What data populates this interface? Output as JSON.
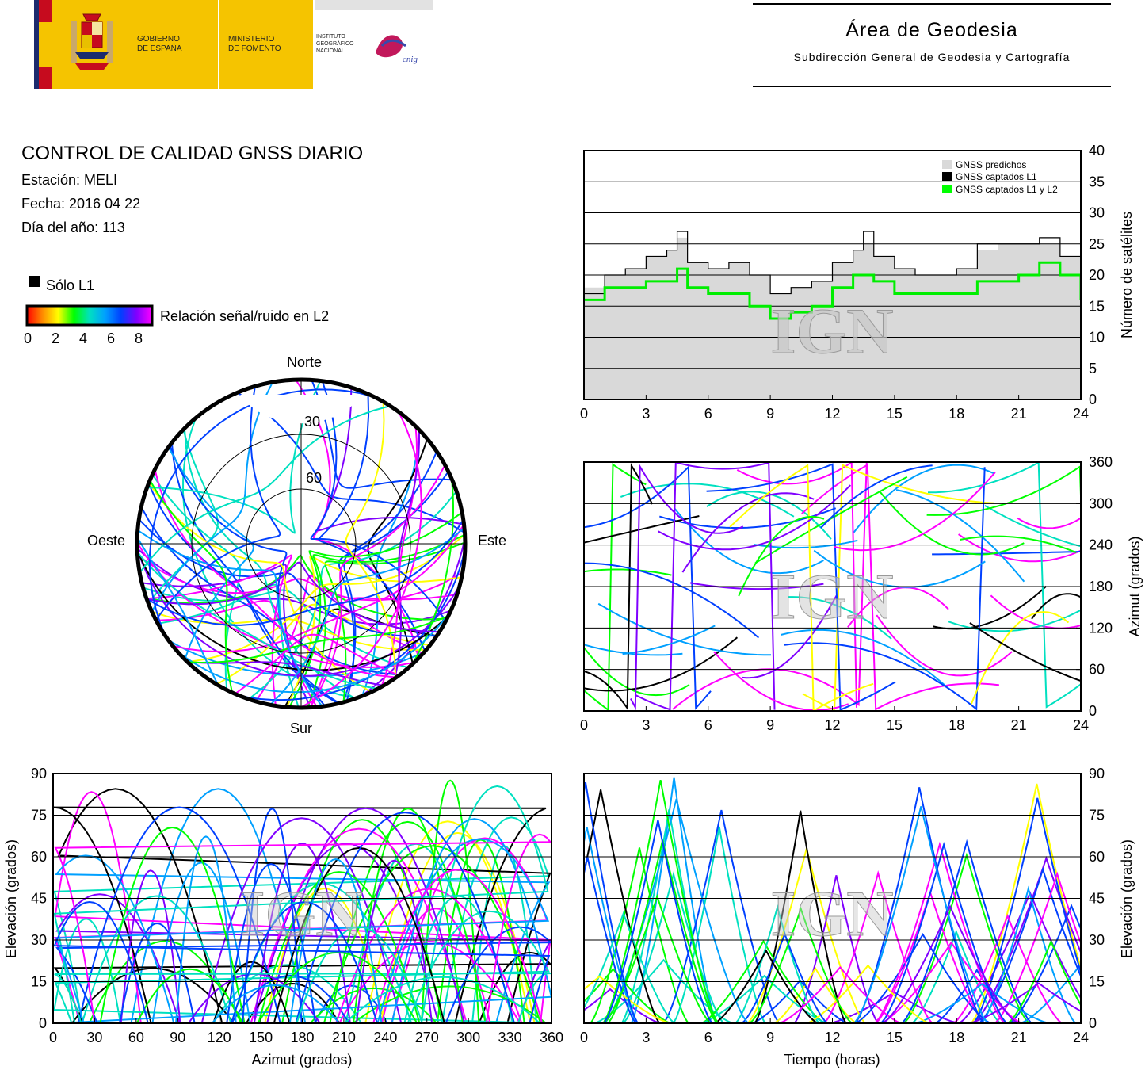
{
  "header": {
    "gobierno": [
      "GOBIERNO",
      "DE ESPAÑA"
    ],
    "ministerio": [
      "MINISTERIO",
      "DE FOMENTO"
    ],
    "instituto": [
      "INSTITUTO",
      "GEOGRÁFICO",
      "NACIONAL"
    ],
    "cnig": "cnig",
    "area_title": "Área de Geodesia",
    "area_subtitle": "Subdirección General de Geodesia y Cartografía"
  },
  "info": {
    "title": "CONTROL DE CALIDAD GNSS DIARIO",
    "station": "Estación: MELI",
    "date": "Fecha: 2016 04 22",
    "doy": "Día del año: 113"
  },
  "watermark": "IGN",
  "colorbar": {
    "l1_only": "Sólo L1",
    "label": "Relación señal/ruido en L2",
    "ticks": [
      "0",
      "2",
      "4",
      "6",
      "8"
    ],
    "colors": [
      "#ff0000",
      "#ff8c00",
      "#ffff00",
      "#00ff00",
      "#00e0c0",
      "#00a0ff",
      "#0040ff",
      "#8000ff",
      "#ff00ff"
    ]
  },
  "polar": {
    "north": "Norte",
    "south": "Sur",
    "west": "Oeste",
    "east": "Este",
    "ring_labels": [
      "30",
      "60"
    ]
  },
  "chart_data": [
    {
      "type": "line",
      "name": "satellite-count",
      "legend": [
        "GNSS predichos",
        "GNSS captados L1",
        "GNSS captados L1 y L2"
      ],
      "legend_colors": [
        "#d9d9d9",
        "#000000",
        "#00ff00"
      ],
      "ylabel": "Número de satélites",
      "xlim": [
        0,
        24
      ],
      "ylim": [
        0,
        40
      ],
      "xticks": [
        "0",
        "3",
        "6",
        "9",
        "12",
        "15",
        "18",
        "21",
        "24"
      ],
      "yticks": [
        "0",
        "5",
        "10",
        "15",
        "20",
        "25",
        "30",
        "35",
        "40"
      ],
      "x": [
        0,
        1,
        2,
        3,
        4,
        4.5,
        5,
        6,
        7,
        8,
        9,
        10,
        11,
        12,
        13,
        13.5,
        14,
        15,
        16,
        17,
        18,
        19,
        20,
        21,
        22,
        23,
        24
      ],
      "predicted": [
        18,
        20,
        21,
        23,
        24,
        26,
        22,
        21,
        22,
        20,
        17,
        18,
        19,
        22,
        24,
        25,
        23,
        21,
        20,
        20,
        21,
        24,
        25,
        25,
        25,
        23,
        19
      ],
      "l1": [
        17,
        20,
        21,
        23,
        24,
        27,
        22,
        21,
        22,
        20,
        17,
        18,
        19,
        22,
        24,
        27,
        23,
        21,
        20,
        20,
        21,
        25,
        25,
        25,
        26,
        23,
        19
      ],
      "l1l2": [
        16,
        18,
        18,
        19,
        19,
        21,
        18,
        17,
        17,
        15,
        13,
        14,
        15,
        18,
        20,
        20,
        19,
        17,
        17,
        17,
        17,
        19,
        19,
        20,
        22,
        20,
        16
      ]
    },
    {
      "type": "scatter",
      "name": "azimuth-time",
      "ylabel": "Azimut (grados)",
      "xlim": [
        0,
        24
      ],
      "ylim": [
        0,
        360
      ],
      "xticks": [
        "0",
        "3",
        "6",
        "9",
        "12",
        "15",
        "18",
        "21",
        "24"
      ],
      "yticks": [
        "0",
        "60",
        "120",
        "180",
        "240",
        "300",
        "360"
      ]
    },
    {
      "type": "scatter",
      "name": "elevation-azimuth",
      "xlabel": "Azimut (grados)",
      "ylabel": "Elevación (grados)",
      "xlim": [
        0,
        360
      ],
      "ylim": [
        0,
        90
      ],
      "xticks": [
        "0",
        "30",
        "60",
        "90",
        "120",
        "150",
        "180",
        "210",
        "240",
        "270",
        "300",
        "330",
        "360"
      ],
      "yticks": [
        "0",
        "15",
        "30",
        "45",
        "60",
        "75",
        "90"
      ]
    },
    {
      "type": "scatter",
      "name": "elevation-time",
      "xlabel": "Tiempo (horas)",
      "ylabel": "Elevación (grados)",
      "xlim": [
        0,
        24
      ],
      "ylim": [
        0,
        90
      ],
      "xticks": [
        "0",
        "3",
        "6",
        "9",
        "12",
        "15",
        "18",
        "21",
        "24"
      ],
      "yticks": [
        "0",
        "15",
        "30",
        "45",
        "60",
        "75",
        "90"
      ]
    }
  ]
}
